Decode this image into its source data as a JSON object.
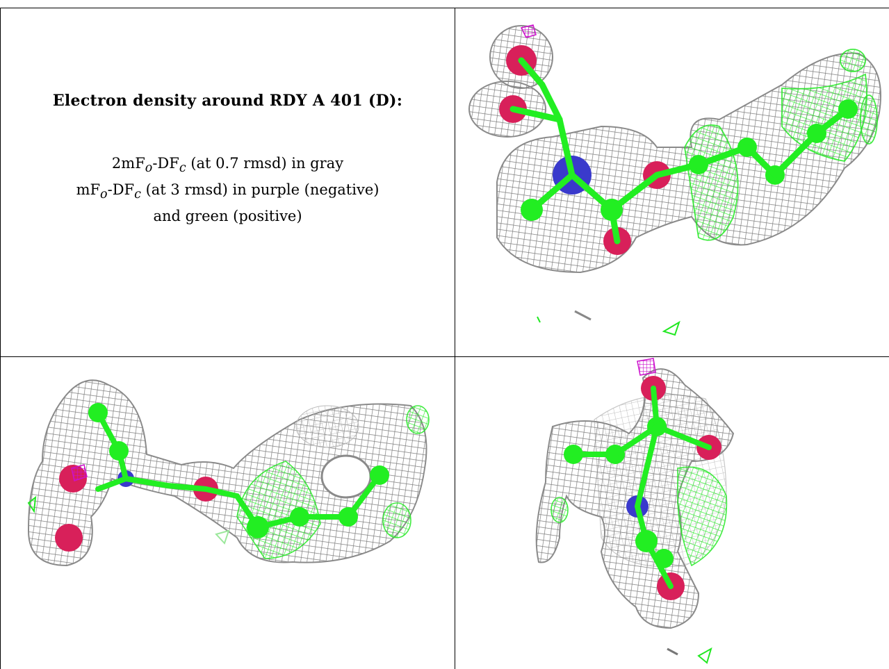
{
  "caption": {
    "title": "Electron density around RDY A 401 (D):",
    "line1": "2mFo-DFc (at 0.7 rmsd) in gray",
    "line1_parts": {
      "a": "2mF",
      "sub1": "o",
      "b": "-DF",
      "sub2": "c",
      "c": " (at 0.7 rmsd) in gray"
    },
    "line2": "mFo-DFc (at 3 rmsd) in purple (negative)",
    "line2_parts": {
      "a": "mF",
      "sub1": "o",
      "b": "-DF",
      "sub2": "c",
      "c": " (at 3 rmsd) in purple (negative)"
    },
    "line3": "and green (positive)"
  },
  "views": [
    {
      "name": "density-view-1"
    },
    {
      "name": "density-view-2"
    },
    {
      "name": "density-view-3"
    }
  ],
  "colors": {
    "mesh_gray": "#8a8a8a",
    "carbon_green": "#22ee22",
    "oxygen_red": "#d8205a",
    "nitrogen_blue": "#3a3acc",
    "negative_purple": "#cc10cc",
    "positive_green": "#00ee00",
    "rule": "#000000"
  }
}
